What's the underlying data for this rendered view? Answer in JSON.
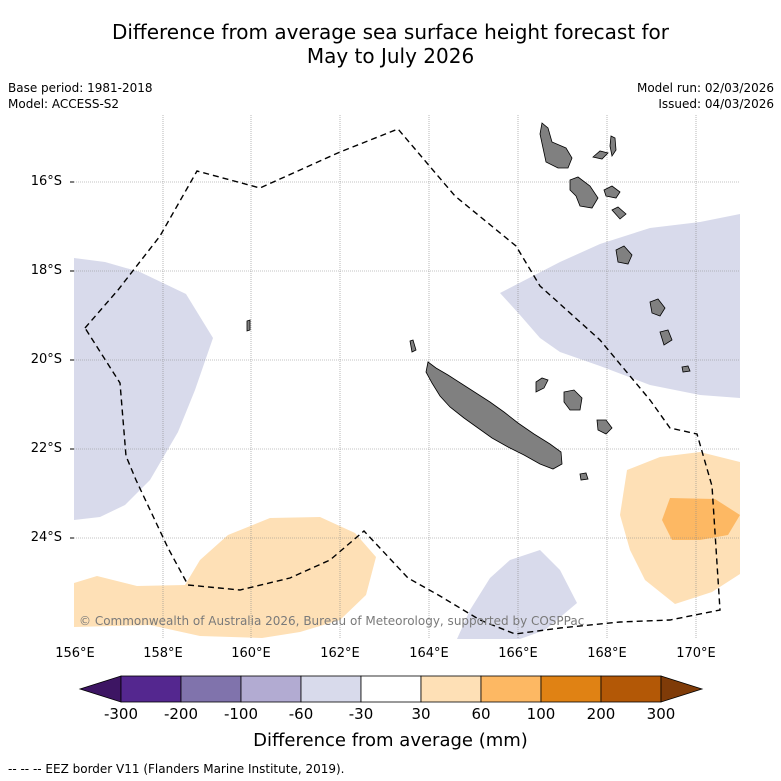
{
  "title": {
    "line1": "Difference from average sea surface height forecast for",
    "line2": "May to July 2026"
  },
  "meta": {
    "base_period": "Base period: 1981-2018",
    "model": "Model: ACCESS-S2",
    "model_run": "Model run: 02/03/2026",
    "issued": "Issued: 04/03/2026"
  },
  "axes": {
    "latitude_labels": [
      "16°S",
      "18°S",
      "20°S",
      "22°S",
      "24°S"
    ],
    "longitude_labels": [
      "156°E",
      "158°E",
      "160°E",
      "162°E",
      "164°E",
      "166°E",
      "168°E",
      "170°E"
    ]
  },
  "copyright": "© Commonwealth of Australia 2026, Bureau of Meteorology, supported by COSPPac",
  "colorbar": {
    "ticks": [
      "-300",
      "-200",
      "-100",
      "-60",
      "-30",
      "30",
      "60",
      "100",
      "200",
      "300"
    ],
    "colors": [
      "#3d1563",
      "#54278f",
      "#8073ac",
      "#b2abd2",
      "#d8daeb",
      "#ffffff",
      "#fee0b6",
      "#fdb863",
      "#e08214",
      "#b35806",
      "#7f3b08"
    ],
    "label": "Difference from average (mm)"
  },
  "legend_note": "--  --  -- EEZ border V11 (Flanders Marine Institute, 2019)."
}
